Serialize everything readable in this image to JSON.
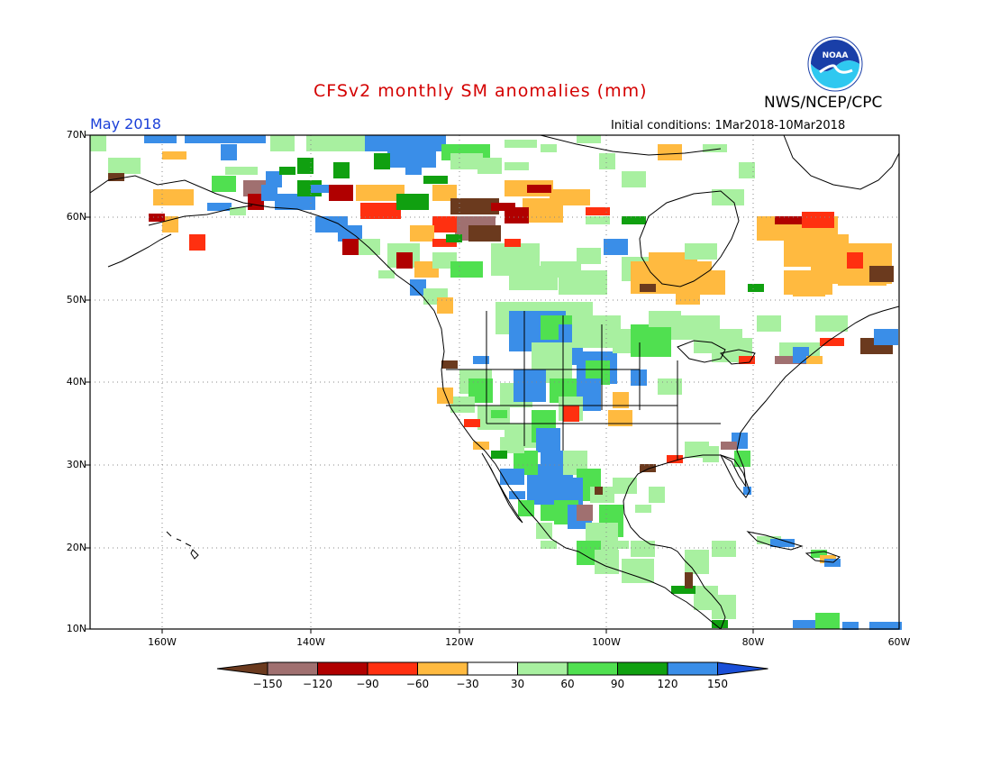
{
  "header": {
    "title": "CFSv2 monthly SM anomalies (mm)",
    "agency": "NWS/NCEP/CPC",
    "period": "May 2018",
    "initial_conditions": "Initial conditions: 1Mar2018-10Mar2018",
    "logo_text": "NOAA"
  },
  "axes": {
    "lat_labels": [
      "70N",
      "60N",
      "50N",
      "40N",
      "30N",
      "20N",
      "10N"
    ],
    "lon_labels": [
      "160W",
      "140W",
      "120W",
      "100W",
      "80W",
      "60W"
    ]
  },
  "colorbar": {
    "labels": [
      "−150",
      "−120",
      "−90",
      "−60",
      "−30",
      "30",
      "60",
      "90",
      "120",
      "150"
    ],
    "colors": [
      "#6b3a1e",
      "#a07070",
      "#b00000",
      "#ff3010",
      "#ffba40",
      "#ffffff",
      "#a8f0a0",
      "#50e050",
      "#10a010",
      "#3a8ee8",
      "#1a4fd8"
    ]
  },
  "palette": {
    "brown_dark": "#6b3a1e",
    "brown_light": "#a07070",
    "dark_red": "#b00000",
    "red": "#ff3010",
    "orange": "#ffba40",
    "light_green": "#a8f0a0",
    "green": "#50e050",
    "dark_green": "#10a010",
    "blue": "#3a8ee8"
  }
}
